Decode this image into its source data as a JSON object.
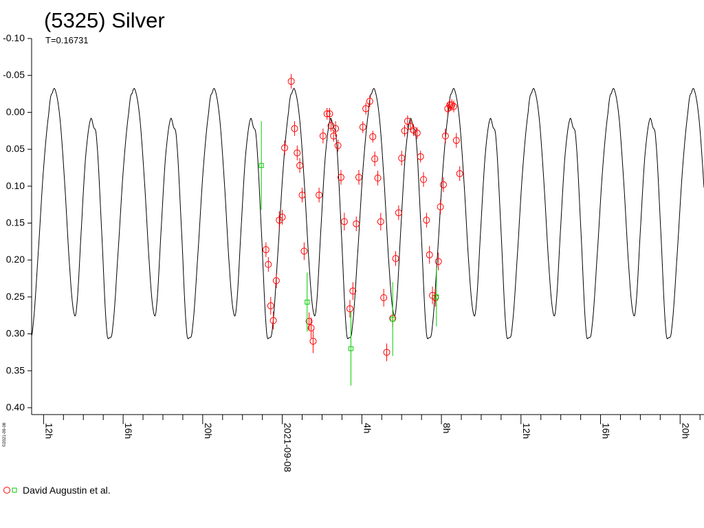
{
  "chart_data": {
    "type": "scatter",
    "title": "(5325) Silver",
    "subtitle": "T=0.16731",
    "copyright": "©2021-09-08",
    "ylim": [
      -0.1,
      0.4
    ],
    "y_inverted": true,
    "y_ticks": [
      "-0.10",
      "-0.05",
      "0.00",
      "0.05",
      "0.10",
      "0.15",
      "0.20",
      "0.25",
      "0.30",
      "0.35",
      "0.40"
    ],
    "x_unit": "hours relative to 2021-09-08 00:00 UT",
    "xlim": [
      -12.6,
      21.2
    ],
    "x_tick_labels": [
      {
        "x": -12,
        "label": "12h"
      },
      {
        "x": -8,
        "label": "16h"
      },
      {
        "x": -4,
        "label": "20h"
      },
      {
        "x": 0,
        "label": "2021-09-08"
      },
      {
        "x": 4,
        "label": "4h"
      },
      {
        "x": 8,
        "label": "8h"
      },
      {
        "x": 12,
        "label": "12h"
      },
      {
        "x": 16,
        "label": "16h"
      },
      {
        "x": 20,
        "label": "20h"
      }
    ],
    "model": {
      "period_days": 0.16731,
      "period_hours": 4.01544,
      "phase_profile": [
        [
          0.0,
          -0.03
        ],
        [
          0.06,
          0.01
        ],
        [
          0.12,
          0.1
        ],
        [
          0.18,
          0.21
        ],
        [
          0.23,
          0.27
        ],
        [
          0.27,
          0.26
        ],
        [
          0.33,
          0.15
        ],
        [
          0.38,
          0.06
        ],
        [
          0.44,
          0.01
        ],
        [
          0.48,
          0.02
        ],
        [
          0.52,
          0.04
        ],
        [
          0.58,
          0.16
        ],
        [
          0.64,
          0.29
        ],
        [
          0.68,
          0.305
        ],
        [
          0.72,
          0.29
        ],
        [
          0.78,
          0.2
        ],
        [
          0.85,
          0.08
        ],
        [
          0.92,
          0.0
        ],
        [
          0.96,
          -0.025
        ],
        [
          1.0,
          -0.03
        ]
      ],
      "phase_zero_hour": -11.41,
      "color": "#000000"
    },
    "series": [
      {
        "name": "David Augustin et al.",
        "marker": "circle",
        "color": "#ff0000",
        "points": [
          [
            -0.82,
            0.186,
            0.01
          ],
          [
            -0.7,
            0.206,
            0.01
          ],
          [
            -0.58,
            0.262,
            0.012
          ],
          [
            -0.45,
            0.282,
            0.012
          ],
          [
            -0.3,
            0.228,
            0.01
          ],
          [
            -0.15,
            0.146,
            0.012
          ],
          [
            0.0,
            0.142,
            0.01
          ],
          [
            0.12,
            0.048,
            0.01
          ],
          [
            0.45,
            -0.042,
            0.01
          ],
          [
            0.62,
            0.022,
            0.01
          ],
          [
            0.75,
            0.055,
            0.01
          ],
          [
            0.88,
            0.072,
            0.01
          ],
          [
            1.0,
            0.112,
            0.01
          ],
          [
            1.1,
            0.188,
            0.012
          ],
          [
            1.35,
            0.283,
            0.012
          ],
          [
            1.45,
            0.292,
            0.014
          ],
          [
            1.55,
            0.31,
            0.016
          ],
          [
            1.85,
            0.112,
            0.01
          ],
          [
            2.05,
            0.032,
            0.01
          ],
          [
            2.25,
            0.002,
            0.008
          ],
          [
            2.38,
            0.002,
            0.008
          ],
          [
            2.45,
            0.018,
            0.008
          ],
          [
            2.58,
            0.032,
            0.008
          ],
          [
            2.68,
            0.022,
            0.01
          ],
          [
            2.8,
            0.045,
            0.008
          ],
          [
            2.95,
            0.088,
            0.01
          ],
          [
            3.12,
            0.148,
            0.012
          ],
          [
            3.4,
            0.266,
            0.012
          ],
          [
            3.55,
            0.242,
            0.012
          ],
          [
            3.72,
            0.151,
            0.01
          ],
          [
            3.85,
            0.088,
            0.01
          ],
          [
            4.05,
            0.02,
            0.008
          ],
          [
            4.2,
            -0.005,
            0.008
          ],
          [
            4.4,
            -0.015,
            0.008
          ],
          [
            4.55,
            0.033,
            0.008
          ],
          [
            4.65,
            0.063,
            0.01
          ],
          [
            4.8,
            0.089,
            0.01
          ],
          [
            4.95,
            0.148,
            0.012
          ],
          [
            5.1,
            0.251,
            0.012
          ],
          [
            5.25,
            0.325,
            0.012
          ],
          [
            5.55,
            0.279,
            0.012
          ],
          [
            5.7,
            0.198,
            0.01
          ],
          [
            5.85,
            0.136,
            0.01
          ],
          [
            6.0,
            0.062,
            0.01
          ],
          [
            6.15,
            0.025,
            0.008
          ],
          [
            6.3,
            0.012,
            0.008
          ],
          [
            6.45,
            0.019,
            0.008
          ],
          [
            6.6,
            0.024,
            0.008
          ],
          [
            6.78,
            0.028,
            0.008
          ],
          [
            6.95,
            0.06,
            0.008
          ],
          [
            7.1,
            0.091,
            0.01
          ],
          [
            7.25,
            0.146,
            0.01
          ],
          [
            7.4,
            0.193,
            0.012
          ],
          [
            7.55,
            0.248,
            0.012
          ],
          [
            7.7,
            0.251,
            0.012
          ],
          [
            7.85,
            0.202,
            0.012
          ],
          [
            7.95,
            0.128,
            0.01
          ],
          [
            8.1,
            0.098,
            0.01
          ],
          [
            8.2,
            0.032,
            0.01
          ],
          [
            8.32,
            -0.005,
            0.008
          ],
          [
            8.42,
            -0.01,
            0.008
          ],
          [
            8.52,
            -0.01,
            0.008
          ],
          [
            8.62,
            -0.008,
            0.008
          ],
          [
            8.75,
            0.038,
            0.01
          ],
          [
            8.92,
            0.083,
            0.01
          ]
        ]
      },
      {
        "name": "David Augustin et al.",
        "marker": "square",
        "color": "#00cc00",
        "points": [
          [
            -1.05,
            0.072,
            0.06
          ],
          [
            1.25,
            0.257,
            0.04
          ],
          [
            3.45,
            0.32,
            0.05
          ],
          [
            5.55,
            0.28,
            0.05
          ],
          [
            7.75,
            0.25,
            0.04
          ]
        ]
      }
    ],
    "legend": {
      "label": "David Augustin et al.",
      "placement": "bottom-left"
    }
  }
}
